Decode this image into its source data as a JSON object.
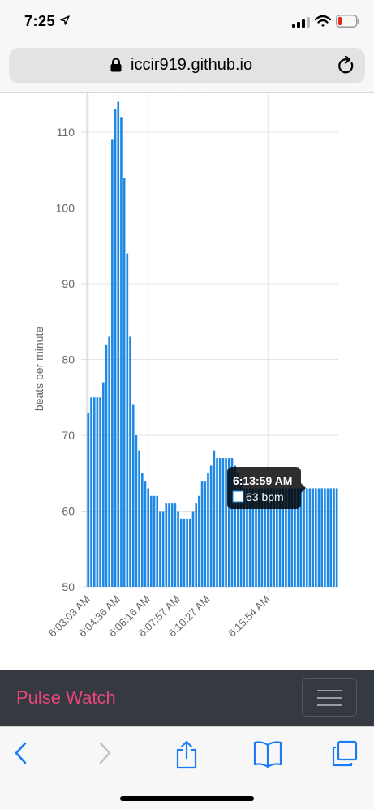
{
  "status_bar": {
    "time": "7:25",
    "icons": [
      "location-arrow-icon",
      "cellular-signal-icon",
      "wifi-icon",
      "battery-low-icon"
    ]
  },
  "browser": {
    "url": "iccir919.github.io",
    "icons": [
      "lock-icon",
      "reload-icon"
    ]
  },
  "chart_data": {
    "type": "bar",
    "ylabel": "beats per minute",
    "xlabel": "",
    "ylim": [
      50,
      115
    ],
    "yticks": [
      50,
      60,
      70,
      80,
      90,
      100,
      110
    ],
    "grid": true,
    "bar_color": "#1e88e5",
    "x_tick_labels": [
      "6:03:03 AM",
      "6:04:36 AM",
      "6:06:16 AM",
      "6:07:57 AM",
      "6:10:27 AM",
      "6:15:54 AM"
    ],
    "values": [
      73,
      75,
      75,
      75,
      75,
      77,
      82,
      83,
      109,
      113,
      114,
      112,
      104,
      94,
      83,
      74,
      70,
      68,
      65,
      64,
      63,
      62,
      62,
      62,
      60,
      60,
      61,
      61,
      61,
      61,
      60,
      59,
      59,
      59,
      59,
      60,
      61,
      62,
      64,
      64,
      65,
      66,
      68,
      67,
      67,
      67,
      67,
      67,
      67,
      66,
      65,
      64,
      63,
      63,
      63,
      63,
      63,
      63,
      63,
      63,
      63,
      63,
      63,
      63,
      63,
      63,
      63,
      63,
      63,
      63,
      63,
      63,
      63,
      63,
      63,
      63,
      63,
      63,
      63,
      63,
      63,
      63,
      63,
      63
    ]
  },
  "tooltip": {
    "title": "6:13:59 AM",
    "value": "63 bpm"
  },
  "navbar": {
    "brand": "Pulse Watch",
    "brand_color": "#e8457d",
    "background": "#343a40"
  },
  "toolbar": {
    "icons": [
      "back-icon",
      "forward-icon",
      "share-icon",
      "bookmarks-icon",
      "tabs-icon"
    ],
    "accent": "#1a7cf5"
  }
}
